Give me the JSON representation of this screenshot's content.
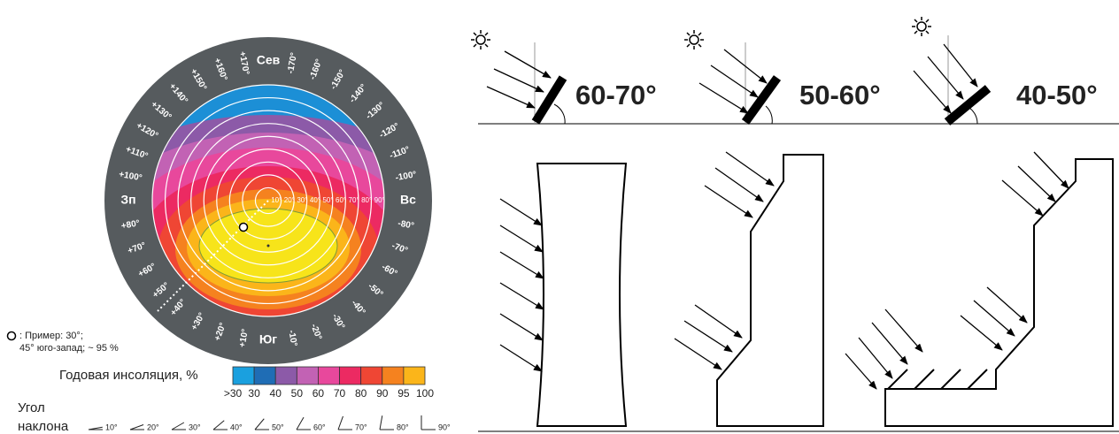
{
  "compass": {
    "ring_labels": [
      "Юг",
      "+10°",
      "+20°",
      "+30°",
      "+40°",
      "+50°",
      "+60°",
      "+70°",
      "+80°",
      "Зп",
      "+100°",
      "+110°",
      "+120°",
      "+130°",
      "+140°",
      "+150°",
      "+160°",
      "+170°",
      "Сев",
      "-170°",
      "-160°",
      "-150°",
      "-140°",
      "-130°",
      "-120°",
      "-110°",
      "-100°",
      "Вс",
      "-80°",
      "-70°",
      "-60°",
      "-50°",
      "-40°",
      "-30°",
      "-20°",
      "-10°"
    ],
    "radial_labels": [
      "10°",
      "20°",
      "30°",
      "40°",
      "50°",
      "60°",
      "70°",
      "80°",
      "90°"
    ]
  },
  "example": {
    "line_1": ": Пример: 30°;",
    "line_2": "45° юго-запад; ~ 95 %"
  },
  "legend": {
    "title": "Годовая инсоляция, %",
    "labels": [
      ">30",
      "30",
      "40",
      "50",
      "60",
      "70",
      "80",
      "90",
      "95",
      "100"
    ]
  },
  "tilt": {
    "title_1": "Угол",
    "title_2": "наклона",
    "labels": [
      "10°",
      "20°",
      "30°",
      "40°",
      "50°",
      "60°",
      "70°",
      "80°",
      "90°"
    ]
  },
  "panels": [
    {
      "label": "60-70°"
    },
    {
      "label": "50-60°"
    },
    {
      "label": "40-50°"
    }
  ]
}
